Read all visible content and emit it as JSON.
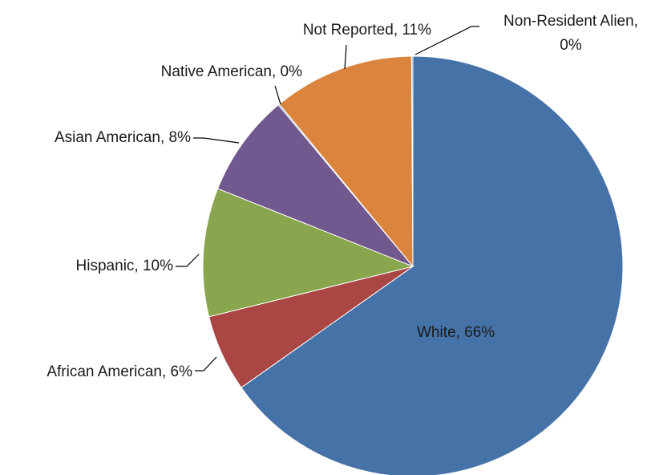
{
  "chart_data": {
    "type": "pie",
    "title": "",
    "slices": [
      {
        "label": "White",
        "value": 66,
        "color": "#4572A7"
      },
      {
        "label": "African American",
        "value": 6,
        "color": "#AA4643"
      },
      {
        "label": "Hispanic",
        "value": 10,
        "color": "#89A54E"
      },
      {
        "label": "Asian American",
        "value": 8,
        "color": "#71588F"
      },
      {
        "label": "Native American",
        "value": 0,
        "color": "#4198AF"
      },
      {
        "label": "Not Reported",
        "value": 11,
        "color": "#DB843D"
      },
      {
        "label": "Non-Resident Alien",
        "value": 0,
        "color": "#93A9CF"
      }
    ],
    "data_labels": [
      "White, 66%",
      "African American, 6%",
      "Hispanic, 10%",
      "Asian American, 8%",
      "Native American, 0%",
      "Not Reported, 11%",
      "Non-Resident Alien, 0%"
    ],
    "legend": "none"
  }
}
